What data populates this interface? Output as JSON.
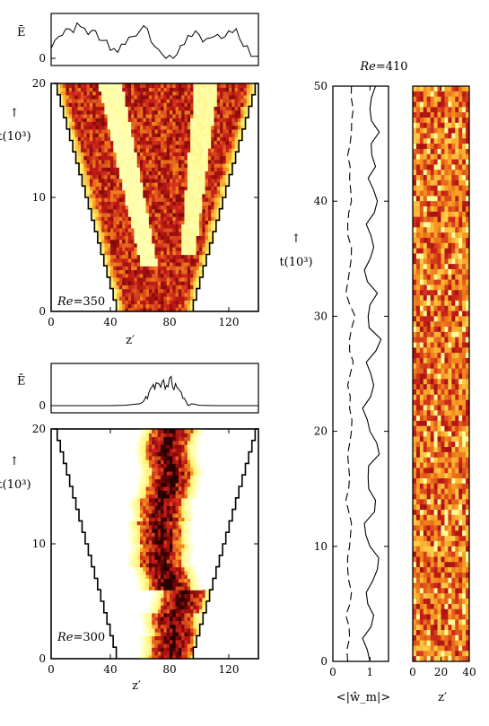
{
  "chart_data": [
    {
      "type": "heatmap",
      "panel": "top-left",
      "re_label_prefix": "Re",
      "re_label_value": "=350",
      "xlabel": "z′",
      "ylabel": "t(10³)",
      "ylabel_arrow": "↑",
      "x_ticks": [
        "0",
        "40",
        "80",
        "120"
      ],
      "x_tick_values": [
        0,
        40,
        80,
        120
      ],
      "y_ticks": [
        "0",
        "10",
        "20"
      ],
      "y_tick_values": [
        0,
        10,
        20
      ],
      "xlim": [
        0,
        140
      ],
      "ylim": [
        0,
        20
      ],
      "domain_bottom": [
        44,
        96
      ],
      "domain_top": [
        2,
        140
      ],
      "bands": [
        {
          "z_start": 65,
          "z_end": 22,
          "width": 22
        },
        {
          "z_start": 82,
          "z_end": 90,
          "width": 30
        },
        {
          "z_start": 92,
          "z_end": 133,
          "width": 16
        }
      ],
      "energy_panel": {
        "ylabel": "Ē",
        "y_ticks": [
          "0"
        ],
        "x": [
          0,
          5,
          10,
          15,
          20,
          25,
          30,
          35,
          40,
          45,
          50,
          55,
          60,
          65,
          70,
          75,
          80,
          85,
          90,
          95,
          100,
          105,
          110,
          115,
          120,
          125,
          130,
          135,
          140
        ],
        "y": [
          0.25,
          0.55,
          0.75,
          0.65,
          0.8,
          0.6,
          0.7,
          0.45,
          0.2,
          0.15,
          0.35,
          0.55,
          0.7,
          0.75,
          0.3,
          0.1,
          0.08,
          0.1,
          0.35,
          0.55,
          0.6,
          0.5,
          0.55,
          0.5,
          0.7,
          0.75,
          0.3,
          0.05,
          0.05
        ]
      }
    },
    {
      "type": "heatmap",
      "panel": "bottom-left",
      "re_label_prefix": "Re",
      "re_label_value": "=300",
      "xlabel": "z′",
      "ylabel": "t(10³)",
      "ylabel_arrow": "↑",
      "x_ticks": [
        "0",
        "40",
        "80",
        "120"
      ],
      "x_tick_values": [
        0,
        40,
        80,
        120
      ],
      "y_ticks": [
        "0",
        "10",
        "20"
      ],
      "y_tick_values": [
        0,
        10,
        20
      ],
      "xlim": [
        0,
        140
      ],
      "ylim": [
        0,
        20
      ],
      "domain_bottom": [
        44,
        96
      ],
      "domain_top": [
        2,
        140
      ],
      "band": {
        "center": [
          80,
          84,
          88,
          78,
          75,
          72,
          76,
          78,
          80,
          80
        ],
        "width": 28
      },
      "energy_panel": {
        "ylabel": "Ē",
        "y_ticks": [
          "0"
        ],
        "x": [
          0,
          10,
          20,
          30,
          40,
          50,
          60,
          62,
          64,
          66,
          68,
          70,
          72,
          74,
          76,
          78,
          80,
          82,
          84,
          86,
          88,
          90,
          95,
          100,
          110,
          120,
          130,
          140
        ],
        "y": [
          0,
          0,
          0,
          0,
          0,
          0.01,
          0.05,
          0.1,
          0.25,
          0.35,
          0.5,
          0.45,
          0.6,
          0.5,
          0.7,
          0.55,
          0.75,
          0.5,
          0.6,
          0.45,
          0.35,
          0.2,
          0.05,
          0.01,
          0,
          0,
          0,
          0
        ]
      }
    },
    {
      "type": "line",
      "panel": "right-line",
      "title_prefix": "Re",
      "title_value": "=410",
      "xlabel": "<|ŵ_m|>",
      "ylabel": "t(10³)",
      "ylabel_arrow": "↑",
      "x_ticks": [
        "0",
        "1"
      ],
      "x_tick_values": [
        0,
        1
      ],
      "y_ticks": [
        "0",
        "10",
        "20",
        "30",
        "40",
        "50"
      ],
      "y_tick_values": [
        0,
        10,
        20,
        30,
        40,
        50
      ],
      "xlim": [
        0,
        1.5
      ],
      "ylim": [
        0,
        50
      ],
      "series": [
        {
          "style": "solid",
          "t": [
            0,
            2,
            4,
            6,
            8,
            10,
            12,
            14,
            16,
            18,
            20,
            22,
            24,
            26,
            28,
            30,
            32,
            34,
            36,
            38,
            40,
            42,
            44,
            46,
            48,
            50
          ],
          "values": [
            1.0,
            0.8,
            1.1,
            0.9,
            1.2,
            1.0,
            0.85,
            1.15,
            0.95,
            1.25,
            1.0,
            0.8,
            1.1,
            0.9,
            1.3,
            0.95,
            1.2,
            0.85,
            1.1,
            0.9,
            1.2,
            0.95,
            1.05,
            1.25,
            1.0,
            1.15
          ]
        },
        {
          "style": "dashed",
          "t": [
            0,
            2,
            4,
            6,
            8,
            10,
            12,
            14,
            16,
            18,
            20,
            22,
            24,
            26,
            28,
            30,
            32,
            34,
            36,
            38,
            40,
            42,
            44,
            46,
            48,
            50
          ],
          "values": [
            0.4,
            0.45,
            0.35,
            0.5,
            0.4,
            0.45,
            0.5,
            0.35,
            0.45,
            0.4,
            0.5,
            0.45,
            0.4,
            0.55,
            0.45,
            0.6,
            0.35,
            0.45,
            0.5,
            0.4,
            0.5,
            0.45,
            0.4,
            0.5,
            0.55,
            0.5
          ]
        }
      ]
    },
    {
      "type": "heatmap",
      "panel": "right-heatmap",
      "xlabel": "z′",
      "x_ticks": [
        "0",
        "20",
        "40"
      ],
      "x_tick_values": [
        0,
        20,
        40
      ],
      "xlim": [
        0,
        40
      ],
      "ylim": [
        0,
        50
      ]
    }
  ],
  "colors": {
    "hot_low": "#ffff9e",
    "hot_mid": "#f7941d",
    "hot_high": "#c8141a",
    "hot_max": "#3a0000",
    "frame": "#000000"
  }
}
